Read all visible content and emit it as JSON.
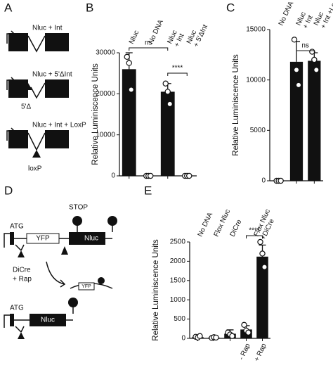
{
  "panels": {
    "a": "A",
    "b": "B",
    "c": "C",
    "d": "D",
    "e": "E"
  },
  "diagrams": {
    "a": {
      "c1": "Nluc + Int",
      "c2": "Nluc + 5'ΔInt",
      "c2mark": "5'Δ",
      "c3": "Nluc + Int + LoxP",
      "c3mark": "loxP"
    },
    "d": {
      "atg1": "ATG",
      "stop": "STOP",
      "yfp": "YFP",
      "nluc1": "Nluc",
      "enzyme": "DiCre",
      "rap": "+ Rap",
      "yfp2": "YFP",
      "atg2": "ATG",
      "nluc2": "Nluc"
    }
  },
  "chart_data": [
    {
      "type": "bar",
      "ylabel": "Relative Luminiscence Units",
      "categories": [
        "Nluc",
        "No DNA",
        "Nluc + Int",
        "Nluc + 5'ΔInt"
      ],
      "values": [
        26000,
        0,
        20500,
        0
      ],
      "errors": [
        4000,
        0,
        2000,
        0
      ],
      "points": [
        [
          29000,
          27500,
          21000
        ],
        [
          0,
          0,
          0
        ],
        [
          22500,
          20500,
          17500
        ],
        [
          0,
          0,
          0
        ]
      ],
      "color": "#111111",
      "ylim": [
        0,
        30000
      ],
      "yticks": [
        0,
        10000,
        20000,
        30000
      ],
      "annotations": [
        "ns",
        "****"
      ]
    },
    {
      "type": "bar",
      "ylabel": "Relative Luminiscence Units",
      "categories": [
        "No DNA",
        "Nluc + Int",
        "Nluc + Int +LoxP"
      ],
      "values": [
        0,
        11800,
        11900
      ],
      "errors": [
        0,
        2000,
        800
      ],
      "points": [
        [
          0,
          0,
          0
        ],
        [
          14000,
          11000,
          9500
        ],
        [
          12800,
          12000,
          11000
        ]
      ],
      "color": "#111111",
      "ylim": [
        0,
        15000
      ],
      "yticks": [
        0,
        5000,
        10000,
        15000
      ],
      "annotations": [
        "ns"
      ]
    },
    {
      "type": "bar",
      "ylabel": "Relative Luminiscence Units",
      "categories": [
        "No DNA",
        "Flox Nluc",
        "DiCre",
        "- Rap",
        "+ Rap"
      ],
      "group_label": "Flox Nluc +DiCre",
      "values": [
        30,
        20,
        120,
        230,
        2120
      ],
      "errors": [
        20,
        10,
        100,
        100,
        300
      ],
      "points": [
        [
          40,
          20,
          60
        ],
        [
          10,
          30,
          20
        ],
        [
          150,
          100,
          60
        ],
        [
          350,
          200,
          150
        ],
        [
          2500,
          2200,
          1850
        ]
      ],
      "color": "#111111",
      "ylim": [
        0,
        2500
      ],
      "yticks": [
        0,
        500,
        1000,
        1500,
        2000,
        2500
      ],
      "annotations": [
        "****"
      ]
    }
  ]
}
